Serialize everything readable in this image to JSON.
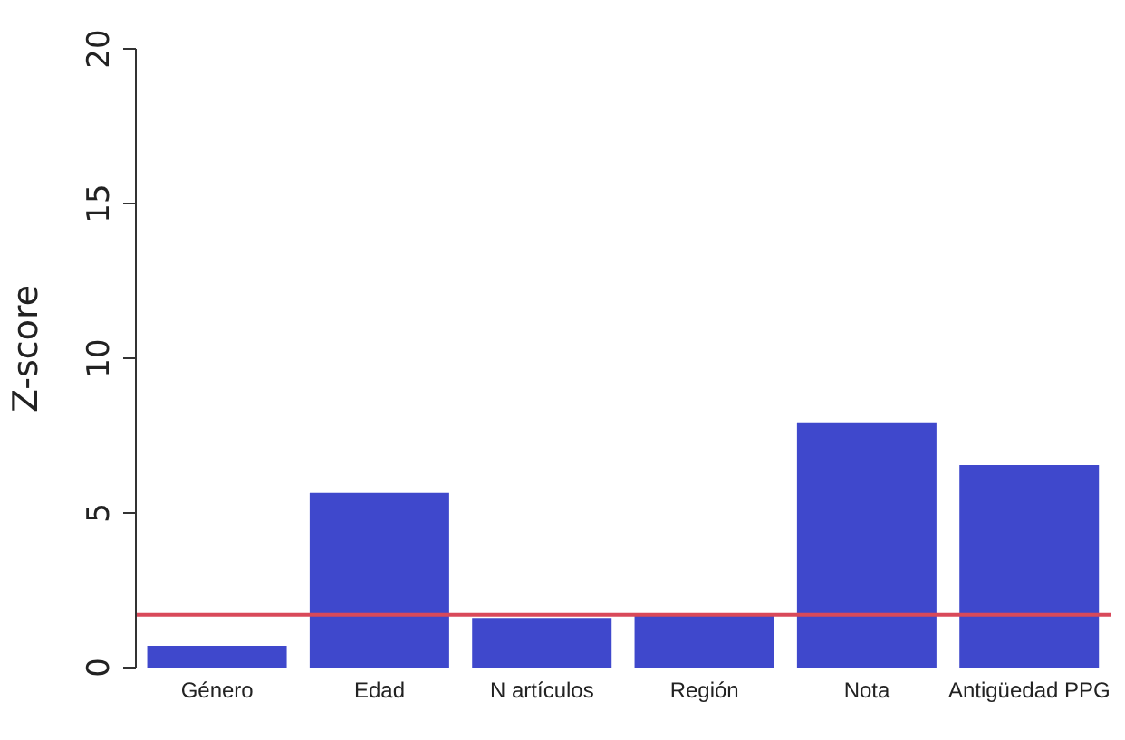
{
  "chart_data": {
    "type": "bar",
    "ylabel": "Z-score",
    "categories": [
      "Género",
      "Edad",
      "N artículos",
      "Región",
      "Nota",
      "Antigüedad PPG"
    ],
    "values": [
      0.7,
      5.65,
      1.6,
      1.7,
      7.9,
      6.55
    ],
    "color": "#3f48cc",
    "ylim": [
      0,
      20
    ],
    "yticks": [
      0,
      5,
      10,
      15,
      20
    ],
    "grid": false,
    "legend": false,
    "ref_lines": [
      {
        "axis": "y",
        "value": 1.7,
        "color": "#d9495a"
      }
    ]
  }
}
